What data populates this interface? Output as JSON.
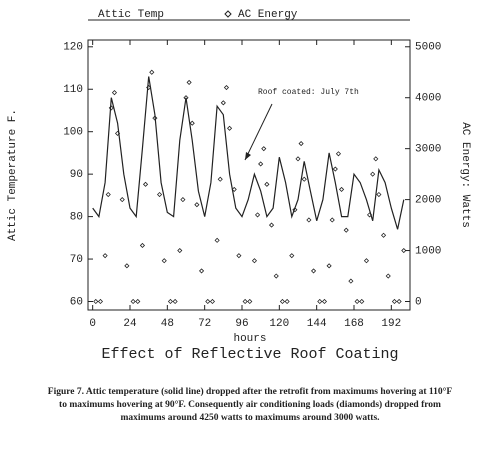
{
  "chart_data": {
    "type": "line",
    "title": "Effect of Reflective Roof Coating",
    "xlabel": "hours",
    "ylabel": "Attic Temperature F.",
    "y2label": "AC Energy: Watts",
    "annotation": "Roof coated: July 7th",
    "x": [
      0,
      4,
      8,
      12,
      16,
      20,
      24,
      28,
      32,
      36,
      40,
      44,
      48,
      52,
      56,
      60,
      64,
      68,
      72,
      76,
      80,
      84,
      88,
      92,
      96,
      100,
      104,
      108,
      112,
      116,
      120,
      124,
      128,
      132,
      136,
      140,
      144,
      148,
      152,
      156,
      160,
      164,
      168,
      172,
      176,
      180,
      184,
      188,
      192,
      196,
      200
    ],
    "series": [
      {
        "name": "Attic Temp",
        "color": "#222222",
        "values": [
          82,
          80,
          88,
          108,
          102,
          90,
          82,
          80,
          96,
          113,
          104,
          88,
          81,
          80,
          98,
          108,
          98,
          86,
          80,
          88,
          106,
          104,
          90,
          82,
          80,
          84,
          90,
          86,
          80,
          82,
          94,
          88,
          80,
          84,
          93,
          86,
          79,
          84,
          95,
          88,
          80,
          80,
          90,
          88,
          84,
          79,
          91,
          88,
          82,
          77,
          84
        ]
      },
      {
        "name": "AC Energy",
        "color": "#222222",
        "type": "scatter",
        "axis": "y2",
        "x": [
          2,
          5,
          8,
          10,
          12,
          14,
          16,
          19,
          22,
          26,
          29,
          32,
          34,
          36,
          38,
          40,
          43,
          46,
          50,
          53,
          56,
          58,
          60,
          62,
          64,
          67,
          70,
          74,
          77,
          80,
          82,
          84,
          86,
          88,
          91,
          94,
          98,
          101,
          104,
          106,
          108,
          110,
          112,
          115,
          118,
          122,
          125,
          128,
          130,
          132,
          134,
          136,
          139,
          142,
          146,
          149,
          152,
          154,
          156,
          158,
          160,
          163,
          166,
          170,
          173,
          176,
          178,
          180,
          182,
          184,
          187,
          190,
          194,
          197,
          200
        ],
        "values": [
          0,
          0,
          900,
          2100,
          3800,
          4100,
          3300,
          2000,
          700,
          0,
          0,
          1100,
          2300,
          4200,
          4500,
          3600,
          2100,
          800,
          0,
          0,
          1000,
          2000,
          4000,
          4300,
          3500,
          1900,
          600,
          0,
          0,
          1200,
          2400,
          3900,
          4200,
          3400,
          2200,
          900,
          0,
          0,
          800,
          1700,
          2700,
          3000,
          2300,
          1500,
          500,
          0,
          0,
          900,
          1800,
          2800,
          3100,
          2400,
          1600,
          600,
          0,
          0,
          700,
          1600,
          2600,
          2900,
          2200,
          1400,
          400,
          0,
          0,
          800,
          1700,
          2500,
          2800,
          2100,
          1300,
          500,
          0,
          0,
          1000
        ]
      }
    ],
    "xlim": [
      -3,
      204
    ],
    "xticks": [
      0,
      24,
      48,
      72,
      96,
      120,
      144,
      168,
      192
    ],
    "ylim": [
      58,
      121.6
    ],
    "yticks": [
      60,
      70,
      80,
      90,
      100,
      110,
      120
    ],
    "y2lim": [
      -167,
      5133
    ],
    "y2ticks": [
      0,
      1000,
      2000,
      3000,
      4000,
      5000
    ]
  },
  "caption": [
    "Figure 7.  Attic temperature (solid line) dropped after the retrofit from maximums hovering at 110°F",
    "to maximums hovering at 90°F.  Consequently air conditioning loads (diamonds) dropped from",
    "maximums around 4250 watts to maximums around 3000 watts."
  ]
}
